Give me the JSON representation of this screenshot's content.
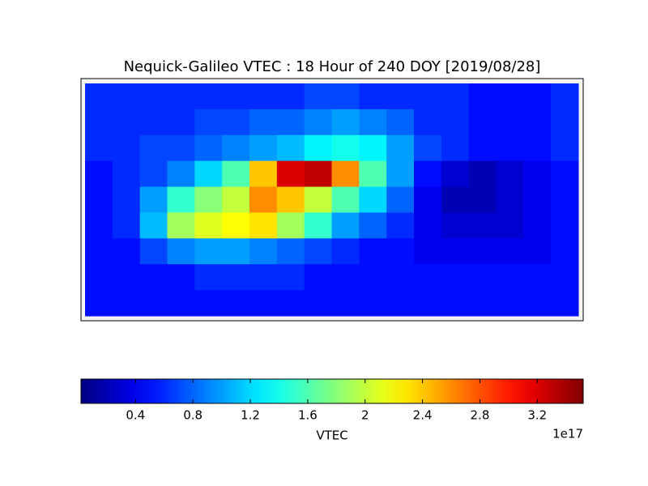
{
  "chart_data": {
    "type": "heatmap",
    "title": "Nequick-Galileo VTEC : 18 Hour of 240 DOY [2019/08/28]",
    "colormap": "jet",
    "x": [
      -170,
      -150,
      -130,
      -110,
      -90,
      -70,
      -50,
      -30,
      -10,
      10,
      30,
      50,
      70,
      90,
      110,
      130,
      150,
      170
    ],
    "y": [
      80,
      60,
      40,
      20,
      0,
      -20,
      -40,
      -60,
      -80
    ],
    "xlim": [
      -180,
      180
    ],
    "ylim": [
      -90,
      90
    ],
    "z": [
      [
        0.6,
        0.6,
        0.6,
        0.6,
        0.6,
        0.6,
        0.6,
        0.6,
        0.7,
        0.7,
        0.6,
        0.6,
        0.6,
        0.6,
        0.5,
        0.5,
        0.5,
        0.6
      ],
      [
        0.6,
        0.6,
        0.6,
        0.6,
        0.7,
        0.7,
        0.8,
        0.8,
        0.9,
        1.0,
        0.9,
        0.8,
        0.6,
        0.6,
        0.5,
        0.5,
        0.5,
        0.6
      ],
      [
        0.6,
        0.6,
        0.7,
        0.7,
        0.8,
        0.9,
        1.0,
        1.1,
        1.3,
        1.4,
        1.3,
        1.0,
        0.7,
        0.6,
        0.5,
        0.5,
        0.5,
        0.6
      ],
      [
        0.5,
        0.6,
        0.7,
        0.9,
        1.2,
        1.6,
        2.4,
        3.2,
        3.3,
        2.6,
        1.6,
        1.0,
        0.5,
        0.3,
        0.2,
        0.3,
        0.4,
        0.5
      ],
      [
        0.5,
        0.6,
        1.0,
        1.5,
        1.8,
        2.0,
        2.6,
        2.4,
        2.0,
        1.6,
        1.2,
        0.8,
        0.4,
        0.2,
        0.2,
        0.3,
        0.4,
        0.5
      ],
      [
        0.5,
        0.6,
        1.1,
        1.9,
        2.1,
        2.2,
        2.3,
        1.9,
        1.5,
        1.0,
        0.8,
        0.6,
        0.4,
        0.3,
        0.3,
        0.3,
        0.4,
        0.5
      ],
      [
        0.5,
        0.5,
        0.7,
        0.9,
        1.0,
        1.0,
        0.9,
        0.8,
        0.7,
        0.6,
        0.5,
        0.5,
        0.4,
        0.4,
        0.4,
        0.4,
        0.4,
        0.5
      ],
      [
        0.5,
        0.5,
        0.5,
        0.5,
        0.6,
        0.6,
        0.6,
        0.6,
        0.5,
        0.5,
        0.5,
        0.5,
        0.5,
        0.5,
        0.5,
        0.5,
        0.5,
        0.5
      ],
      [
        0.5,
        0.5,
        0.5,
        0.5,
        0.5,
        0.5,
        0.5,
        0.5,
        0.5,
        0.5,
        0.5,
        0.5,
        0.5,
        0.5,
        0.5,
        0.5,
        0.5,
        0.5
      ]
    ],
    "clim": [
      0.02,
      3.52
    ],
    "cticks": [
      0.4,
      0.8,
      1.2,
      1.6,
      2.0,
      2.4,
      2.8,
      3.2
    ],
    "colorbar_label": "VTEC",
    "offset_label": "1e17"
  }
}
